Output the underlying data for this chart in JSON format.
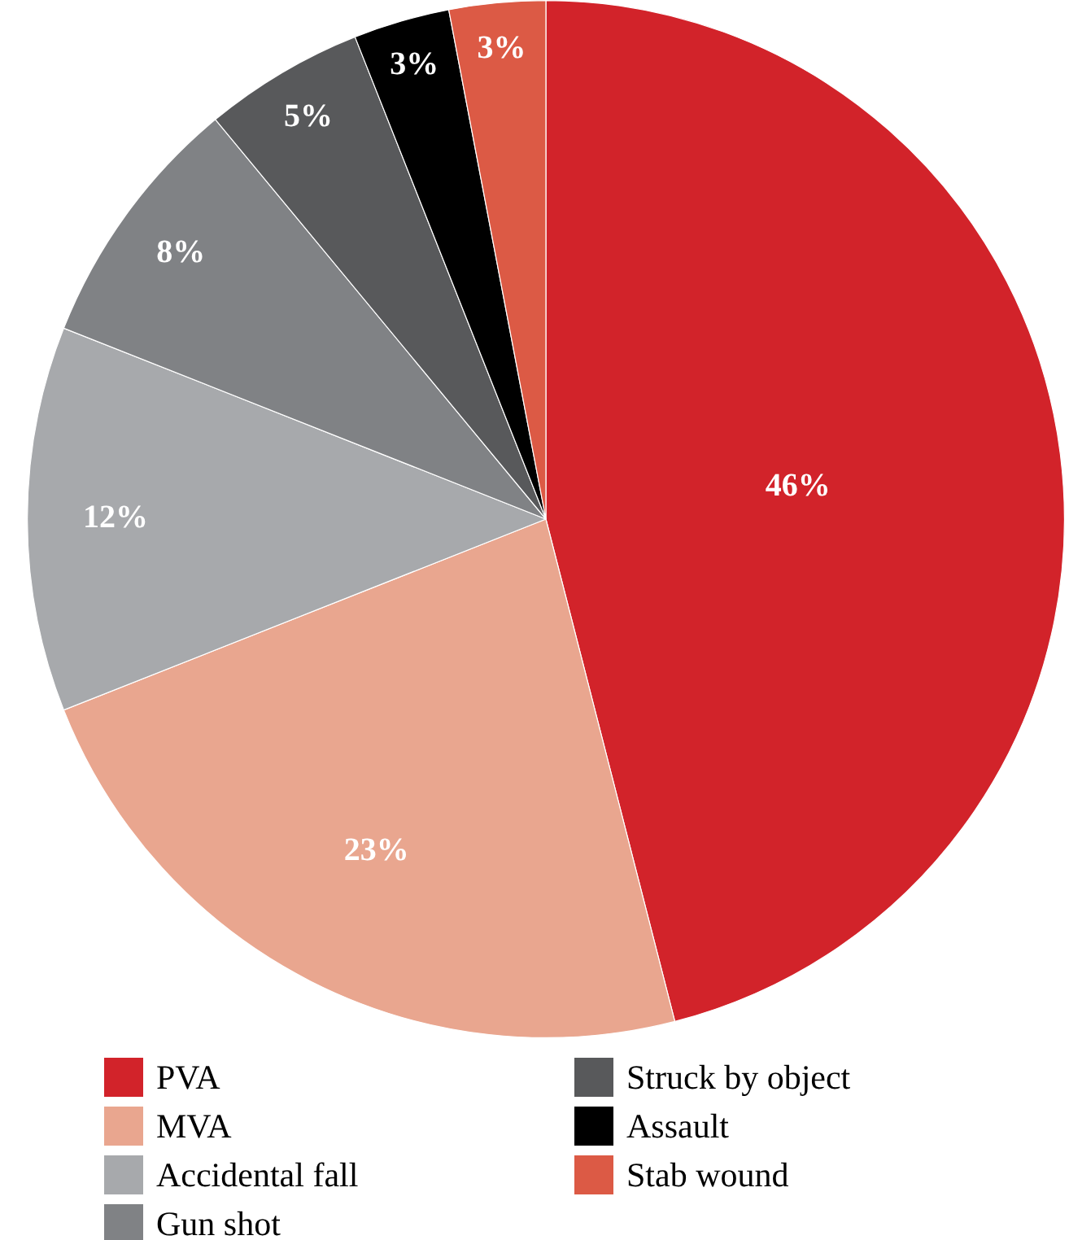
{
  "chart_data": {
    "type": "pie",
    "categories": [
      "PVA",
      "MVA",
      "Accidental fall",
      "Gun shot",
      "Struck by object",
      "Assault",
      "Stab wound"
    ],
    "values": [
      46,
      23,
      12,
      8,
      5,
      3,
      3
    ],
    "colors": [
      "#d2232a",
      "#e9a68f",
      "#a7a9ac",
      "#808285",
      "#58595b",
      "#000000",
      "#dc5a45"
    ],
    "value_labels": [
      "46%",
      "23%",
      "12%",
      "8%",
      "5%",
      "3%",
      "3%"
    ],
    "legend": "bottom"
  }
}
